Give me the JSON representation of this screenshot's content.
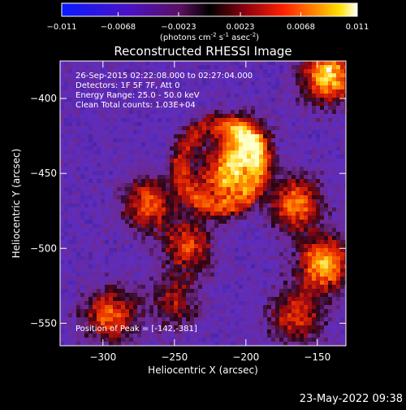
{
  "colorbar": {
    "ticks": [
      "-0.011",
      "-0.0068",
      "-0.0023",
      "0.0023",
      "0.0068",
      "0.011"
    ],
    "unit_parts": [
      "(photons cm",
      "-2",
      " s",
      "-1",
      " asec",
      "-2",
      ")"
    ]
  },
  "chart_data": {
    "type": "heatmap",
    "title": "Reconstructed RHESSI Image",
    "xlabel": "Heliocentric X (arcsec)",
    "ylabel": "Heliocentric Y (arcsec)",
    "xlim": [
      -330,
      -130
    ],
    "ylim": [
      -565,
      -375
    ],
    "x_ticks": [
      -300,
      -250,
      -200,
      -150
    ],
    "y_ticks": [
      -400,
      -450,
      -500,
      -550
    ],
    "value_range": [
      -0.011,
      0.011
    ],
    "colormap": "purple-black-red-yellow-white",
    "grid": false,
    "annotations": [
      "26-Sep-2015 02:22:08.000 to 02:27:04.000",
      "Detectors: 1F 5F 7F, Att 0",
      "Energy Range: 25.0 - 50.0 keV",
      "Clean    Total counts: 1.03E+04"
    ],
    "peak_label": "Position of Peak = [-142,-381]",
    "peak_position": [
      -142,
      -381
    ],
    "sources": [
      {
        "x": -215,
        "y": -450,
        "intensity": 1.0
      },
      {
        "x": -200,
        "y": -432,
        "intensity": 0.7
      },
      {
        "x": -268,
        "y": -470,
        "intensity": 0.65
      },
      {
        "x": -240,
        "y": -498,
        "intensity": 0.6
      },
      {
        "x": -142,
        "y": -385,
        "intensity": 0.95
      },
      {
        "x": -145,
        "y": -510,
        "intensity": 0.9
      },
      {
        "x": -165,
        "y": -470,
        "intensity": 0.75
      },
      {
        "x": -295,
        "y": -545,
        "intensity": 0.7
      },
      {
        "x": -250,
        "y": -535,
        "intensity": 0.45
      },
      {
        "x": -165,
        "y": -545,
        "intensity": 0.6
      }
    ]
  },
  "footer": {
    "timestamp": "23-May-2022 09:38"
  }
}
